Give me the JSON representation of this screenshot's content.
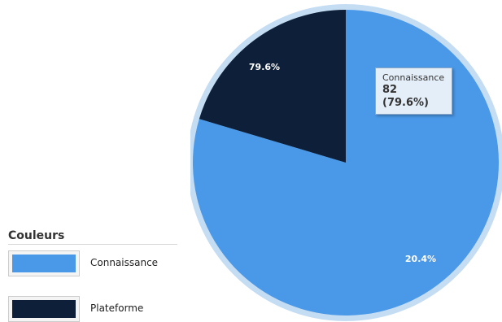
{
  "chart_data": {
    "type": "pie",
    "slices": [
      {
        "name": "Connaissance",
        "value": 82,
        "percent": 79.6,
        "percent_label": "79.6%",
        "color": "#4a98e8"
      },
      {
        "name": "Plateforme",
        "value": 21,
        "percent": 20.4,
        "percent_label": "20.4%",
        "color": "#0e2039"
      }
    ],
    "start_angle_deg": 0,
    "direction": "clockwise",
    "rim_color": "#c5ddf3"
  },
  "tooltip": {
    "series_name": "Connaissance",
    "value_text": "82 (79.6%)"
  },
  "legend": {
    "title": "Couleurs",
    "items": [
      {
        "label": "Connaissance",
        "color": "#4a98e8"
      },
      {
        "label": "Plateforme",
        "color": "#0e2039"
      }
    ]
  }
}
